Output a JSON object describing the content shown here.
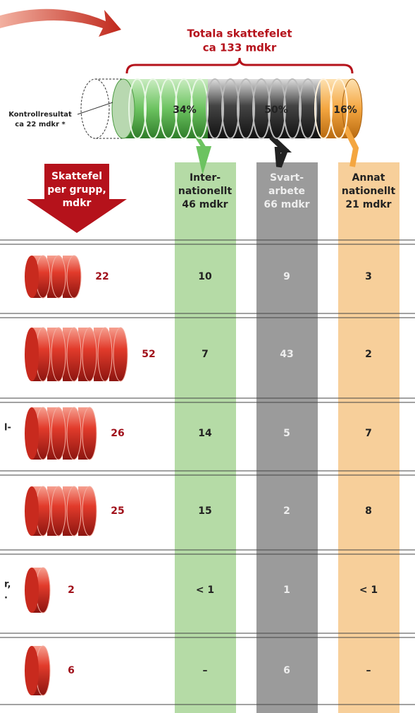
{
  "header": {
    "title": [
      "Totala skattefelet",
      "ca 133 mdkr"
    ]
  },
  "cylinder": {
    "shares": [
      "34%",
      "50%",
      "16%"
    ],
    "control": [
      "Kontrollresultat",
      "ca 22 mdkr *"
    ]
  },
  "group_header": [
    "Skattefel",
    "per grupp,",
    "mdkr"
  ],
  "columns": [
    [
      "Inter-",
      "nationellt",
      "46 mdkr"
    ],
    [
      "Svart-",
      "arbete",
      "66 mdkr"
    ],
    [
      "Annat",
      "nationellt",
      "21 mdkr"
    ]
  ],
  "rows": [
    {
      "total": "22",
      "cells": [
        "10",
        "9",
        "3"
      ]
    },
    {
      "total": "52",
      "cells": [
        "7",
        "43",
        "2"
      ]
    },
    {
      "fragment": [
        "l-"
      ],
      "total": "26",
      "cells": [
        "14",
        "5",
        "7"
      ]
    },
    {
      "total": "25",
      "cells": [
        "15",
        "2",
        "8"
      ]
    },
    {
      "fragment": [
        "r,",
        "."
      ],
      "total": "2",
      "cells": [
        "< 1",
        "1",
        "< 1"
      ]
    },
    {
      "total": "6",
      "cells": [
        "–",
        "6",
        "–"
      ]
    }
  ]
}
